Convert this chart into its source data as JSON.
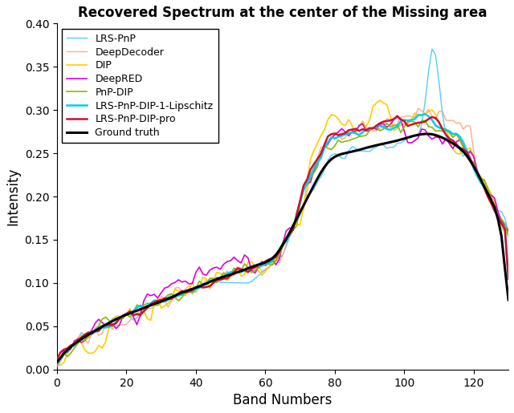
{
  "title": "Recovered Spectrum at the center of the Missing area",
  "xlabel": "Band Numbers",
  "ylabel": "Intensity",
  "xlim": [
    0,
    130
  ],
  "ylim": [
    0,
    0.4
  ],
  "xticks": [
    0,
    20,
    40,
    60,
    80,
    100,
    120
  ],
  "yticks": [
    0,
    0.05,
    0.1,
    0.15,
    0.2,
    0.25,
    0.3,
    0.35,
    0.4
  ],
  "lines": [
    {
      "label": "LRS-PnP",
      "color": "#55CCFF",
      "linewidth": 1.0,
      "zorder": 3
    },
    {
      "label": "DeepDecoder",
      "color": "#FFAA88",
      "linewidth": 1.0,
      "zorder": 3
    },
    {
      "label": "DIP",
      "color": "#FFCC00",
      "linewidth": 1.2,
      "zorder": 3
    },
    {
      "label": "DeepRED",
      "color": "#DD00DD",
      "linewidth": 1.2,
      "zorder": 3
    },
    {
      "label": "PnP-DIP",
      "color": "#88BB00",
      "linewidth": 1.2,
      "zorder": 3
    },
    {
      "label": "LRS-PnP-DIP-1-Lipschitz",
      "color": "#00CCEE",
      "linewidth": 1.8,
      "zorder": 4
    },
    {
      "label": "LRS-PnP-DIP-pro",
      "color": "#CC1133",
      "linewidth": 1.8,
      "zorder": 5
    },
    {
      "label": "Ground truth",
      "color": "#000000",
      "linewidth": 2.2,
      "zorder": 6
    }
  ],
  "legend_loc": "upper left",
  "title_fontsize": 12,
  "label_fontsize": 12,
  "tick_fontsize": 10,
  "legend_fontsize": 9,
  "fig_width": 6.4,
  "fig_height": 5.15,
  "dpi": 100
}
